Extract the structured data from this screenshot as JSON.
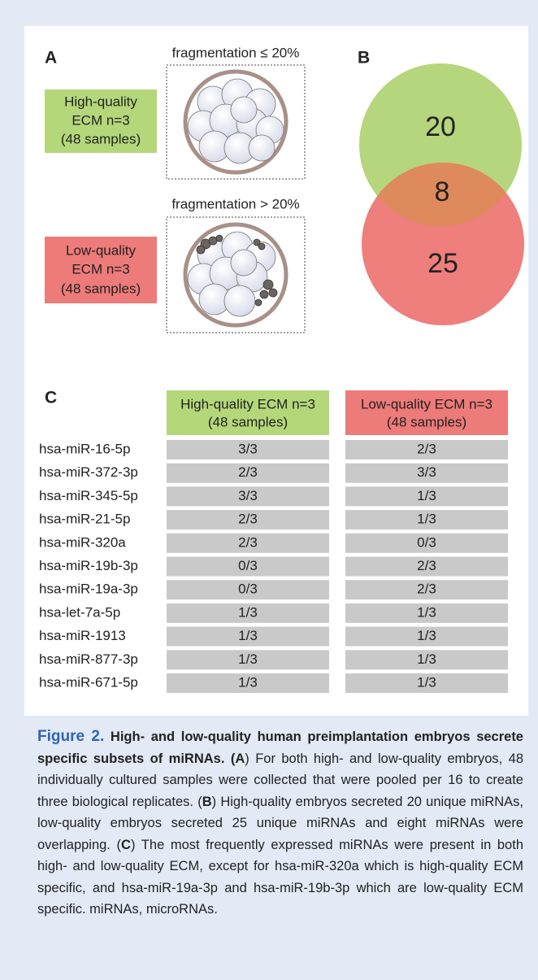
{
  "panel_a": {
    "label": "A",
    "high": {
      "title": "fragmentation ≤ 20%",
      "lines": [
        "High-quality",
        "ECM n=3",
        "(48 samples)"
      ]
    },
    "low": {
      "title": "fragmentation > 20%",
      "lines": [
        "Low-quality",
        "ECM n=3",
        "(48 samples)"
      ]
    }
  },
  "panel_b": {
    "label": "B",
    "high_only": 20,
    "overlap": 8,
    "low_only": 25
  },
  "panel_c": {
    "label": "C",
    "headers": [
      [
        "High-quality ECM n=3",
        "(48 samples)"
      ],
      [
        "Low-quality ECM n=3",
        "(48 samples)"
      ]
    ],
    "rows": [
      [
        "hsa-miR-16-5p",
        "3/3",
        "2/3"
      ],
      [
        "hsa-miR-372-3p",
        "2/3",
        "3/3"
      ],
      [
        "hsa-miR-345-5p",
        "3/3",
        "1/3"
      ],
      [
        "hsa-miR-21-5p",
        "2/3",
        "1/3"
      ],
      [
        "hsa-miR-320a",
        "2/3",
        "0/3"
      ],
      [
        "hsa-miR-19b-3p",
        "0/3",
        "2/3"
      ],
      [
        "hsa-miR-19a-3p",
        "0/3",
        "2/3"
      ],
      [
        "hsa-let-7a-5p",
        "1/3",
        "1/3"
      ],
      [
        "hsa-miR-1913",
        "1/3",
        "1/3"
      ],
      [
        "hsa-miR-877-3p",
        "1/3",
        "1/3"
      ],
      [
        "hsa-miR-671-5p",
        "1/3",
        "1/3"
      ]
    ]
  },
  "caption": {
    "runs": [
      "Figure 2.",
      " High- and low-quality human preimplantation embryos secrete specific subsets of miRNAs",
      ". (",
      "A",
      ") For both high- and low-quality embryos, 48 individually cultured samples were collected that were pooled per 16 to create three biological replicates. (",
      "B",
      ") High-quality embryos secreted 20 unique miRNAs, low-quality embryos secreted 25 unique miRNAs and eight miRNAs were overlapping. (",
      "C",
      ") The most frequently expressed miRNAs were present in both high- and low-quality ECM, except for hsa-miR-320a which is high-quality ECM specific, and hsa-miR-19a-3p and hsa-miR-19b-3p which are low-quality ECM specific. miRNAs, microRNAs."
    ]
  }
}
